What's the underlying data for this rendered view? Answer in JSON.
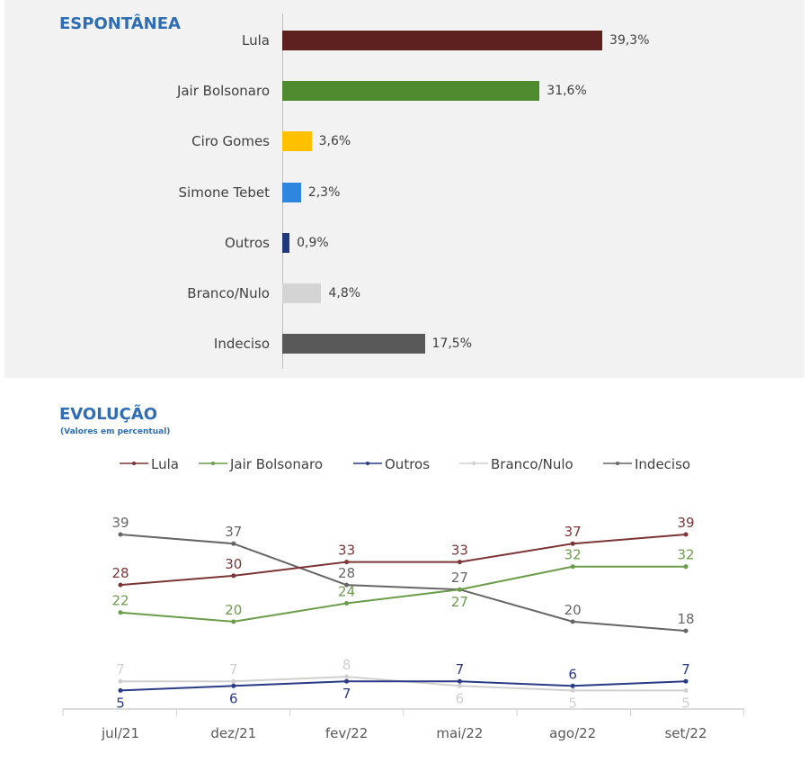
{
  "chart_data": [
    {
      "type": "bar",
      "title": "ESPONTÂNEA",
      "categories": [
        "Lula",
        "Jair Bolsonaro",
        "Ciro Gomes",
        "Simone Tebet",
        "Outros",
        "Branco/Nulo",
        "Indeciso"
      ],
      "values": [
        39.3,
        31.6,
        3.6,
        2.3,
        0.9,
        4.8,
        17.5
      ],
      "labels": [
        "39,3%",
        "31,6%",
        "3,6%",
        "2,3%",
        "0,9%",
        "4,8%",
        "17,5%"
      ],
      "colors": [
        "#5e1f1f",
        "#4f8a2e",
        "#ffc000",
        "#2e86de",
        "#1f3a7a",
        "#d4d4d4",
        "#595959"
      ]
    },
    {
      "type": "line",
      "title": "EVOLUÇÃO",
      "subtitle": "(Valores em percentual)",
      "categories": [
        "jul/21",
        "dez/21",
        "fev/22",
        "mai/22",
        "ago/22",
        "set/22"
      ],
      "legend_position": "top",
      "series": [
        {
          "name": "Lula",
          "color": "#7b3535",
          "values": [
            28,
            30,
            33,
            33,
            37,
            39
          ]
        },
        {
          "name": "Jair Bolsonaro",
          "color": "#6a9c4a",
          "values": [
            22,
            20,
            24,
            27,
            32,
            32
          ]
        },
        {
          "name": "Outros",
          "color": "#2a3a84",
          "values": [
            5,
            6,
            7,
            7,
            6,
            7
          ]
        },
        {
          "name": "Branco/Nulo",
          "color": "#d0d0d0",
          "values": [
            7,
            7,
            8,
            6,
            5,
            5
          ]
        },
        {
          "name": "Indeciso",
          "color": "#666666",
          "values": [
            39,
            37,
            28,
            27,
            20,
            18
          ]
        }
      ]
    }
  ]
}
